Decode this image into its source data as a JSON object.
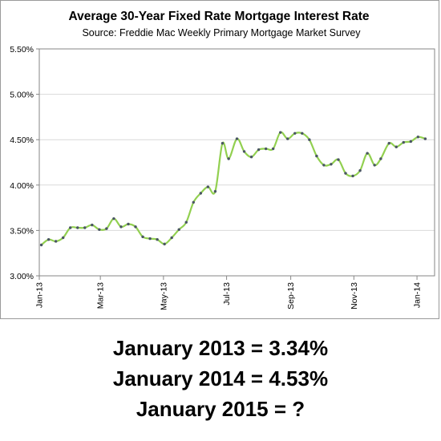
{
  "chart_data": {
    "type": "line",
    "title": "Average 30-Year Fixed Rate Mortgage Interest Rate",
    "subtitle": "Source:  Freddie  Mac Weekly  Primary  Mortgage Market Survey",
    "xlabel": "",
    "ylabel": "",
    "ylim": [
      3.0,
      5.5
    ],
    "yticks": [
      "3.00%",
      "3.50%",
      "4.00%",
      "4.50%",
      "5.00%",
      "5.50%"
    ],
    "xticks": [
      "Jan-13",
      "Mar-13",
      "May-13",
      "Jul-13",
      "Sep-13",
      "Nov-13",
      "Jan-14"
    ],
    "grid": true,
    "legend": "none",
    "line_color": "#92d050",
    "marker_color": "#4a5563",
    "series": [
      {
        "x": [
          "2013-01-03",
          "2013-01-10",
          "2013-01-17",
          "2013-01-24",
          "2013-01-31",
          "2013-02-07",
          "2013-02-14",
          "2013-02-21",
          "2013-02-28",
          "2013-03-07",
          "2013-03-14",
          "2013-03-21",
          "2013-03-28",
          "2013-04-04",
          "2013-04-11",
          "2013-04-18",
          "2013-04-25",
          "2013-05-02",
          "2013-05-09",
          "2013-05-16",
          "2013-05-23",
          "2013-05-30",
          "2013-06-06",
          "2013-06-13",
          "2013-06-20",
          "2013-06-27",
          "2013-07-03",
          "2013-07-11",
          "2013-07-18",
          "2013-07-25",
          "2013-08-01",
          "2013-08-08",
          "2013-08-15",
          "2013-08-22",
          "2013-08-29",
          "2013-09-05",
          "2013-09-12",
          "2013-09-19",
          "2013-09-26",
          "2013-10-03",
          "2013-10-10",
          "2013-10-17",
          "2013-10-24",
          "2013-10-31",
          "2013-11-07",
          "2013-11-14",
          "2013-11-21",
          "2013-11-27",
          "2013-12-05",
          "2013-12-12",
          "2013-12-19",
          "2013-12-26",
          "2014-01-02",
          "2014-01-09"
        ],
        "values": [
          3.34,
          3.4,
          3.38,
          3.42,
          3.53,
          3.53,
          3.53,
          3.56,
          3.51,
          3.52,
          3.63,
          3.54,
          3.57,
          3.54,
          3.43,
          3.41,
          3.4,
          3.35,
          3.42,
          3.51,
          3.59,
          3.81,
          3.91,
          3.98,
          3.93,
          4.46,
          4.29,
          4.51,
          4.37,
          4.31,
          4.39,
          4.4,
          4.4,
          4.58,
          4.51,
          4.57,
          4.57,
          4.5,
          4.32,
          4.22,
          4.23,
          4.28,
          4.13,
          4.1,
          4.16,
          4.35,
          4.22,
          4.29,
          4.46,
          4.42,
          4.47,
          4.48,
          4.53,
          4.51
        ]
      }
    ]
  },
  "footer": {
    "line1": "January 2013 = 3.34%",
    "line2": "January 2014 = 4.53%",
    "line3": "January 2015 = ?"
  }
}
